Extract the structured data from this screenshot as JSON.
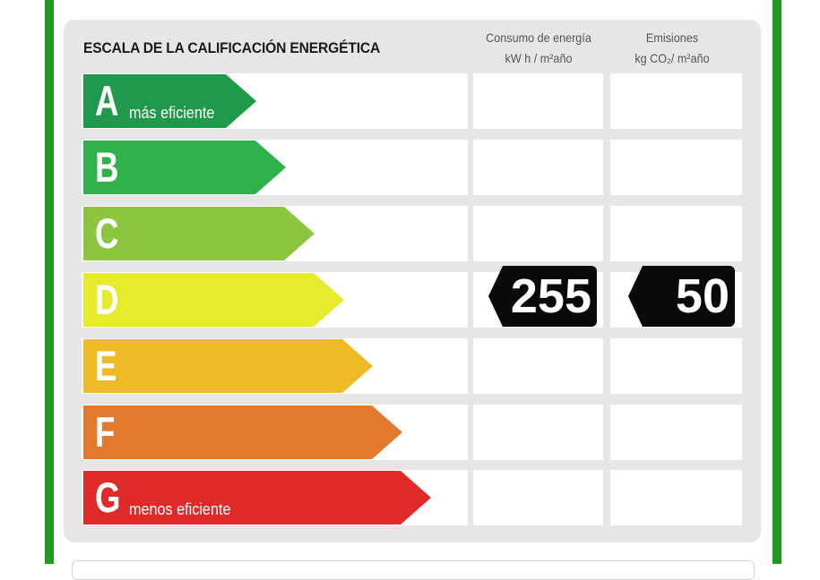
{
  "title": "ESCALA DE LA CALIFICACIÓN ENERGÉTICA",
  "columns": {
    "consumo": {
      "line1": "Consumo de energía",
      "line2": "kW h / m²año"
    },
    "emisiones": {
      "line1": "Emisiones",
      "line2": "kg CO₂/ m²año"
    }
  },
  "ratings": [
    {
      "letter": "A",
      "sublabel": "más eficiente",
      "color": "#1e9a4a",
      "level": 1
    },
    {
      "letter": "B",
      "sublabel": "",
      "color": "#2fb24c",
      "level": 2
    },
    {
      "letter": "C",
      "sublabel": "",
      "color": "#8cc63f",
      "level": 3
    },
    {
      "letter": "D",
      "sublabel": "",
      "color": "#e6eb2e",
      "level": 4
    },
    {
      "letter": "E",
      "sublabel": "",
      "color": "#eebb27",
      "level": 5
    },
    {
      "letter": "F",
      "sublabel": "",
      "color": "#e17a2c",
      "level": 6
    },
    {
      "letter": "G",
      "sublabel": "menos eficiente",
      "color": "#e02a2a",
      "level": 7
    }
  ],
  "current": {
    "rating": "D",
    "consumo_value": "255",
    "emisiones_value": "50"
  },
  "colors": {
    "frame": "#1f9a1f",
    "panel": "#e6e6e6",
    "badge": "#0a0a0a"
  }
}
